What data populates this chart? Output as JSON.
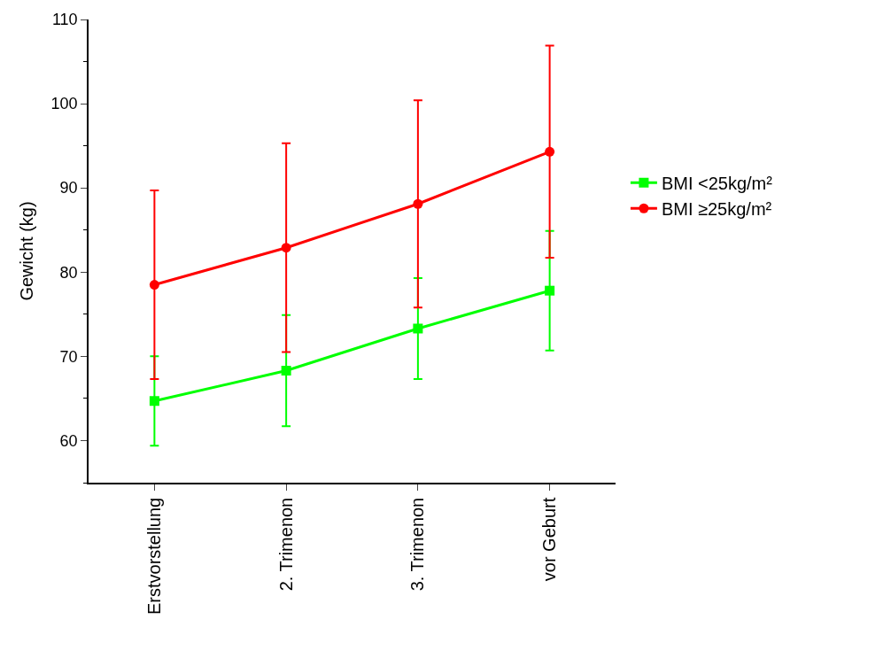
{
  "chart_data": {
    "type": "line",
    "ylabel": "Gewicht (kg)",
    "categories": [
      "Erstvorstellung",
      "2. Trimenon",
      "3. Trimenon",
      "vor Geburt"
    ],
    "series": [
      {
        "name": "BMI <25kg/m²",
        "color": "#00ff00",
        "marker": "square",
        "values": [
          64.7,
          68.3,
          73.3,
          77.8
        ],
        "errors": [
          5.3,
          6.6,
          6.0,
          7.1
        ]
      },
      {
        "name": "BMI ≥25kg/m²",
        "color": "#ff0000",
        "marker": "circle",
        "values": [
          78.5,
          82.9,
          88.1,
          94.3
        ],
        "errors": [
          11.2,
          12.4,
          12.3,
          12.6
        ]
      }
    ],
    "ylim": [
      55,
      110
    ],
    "yticks": [
      60,
      70,
      80,
      90,
      100,
      110
    ],
    "legend": "right",
    "line_style": "solid"
  }
}
